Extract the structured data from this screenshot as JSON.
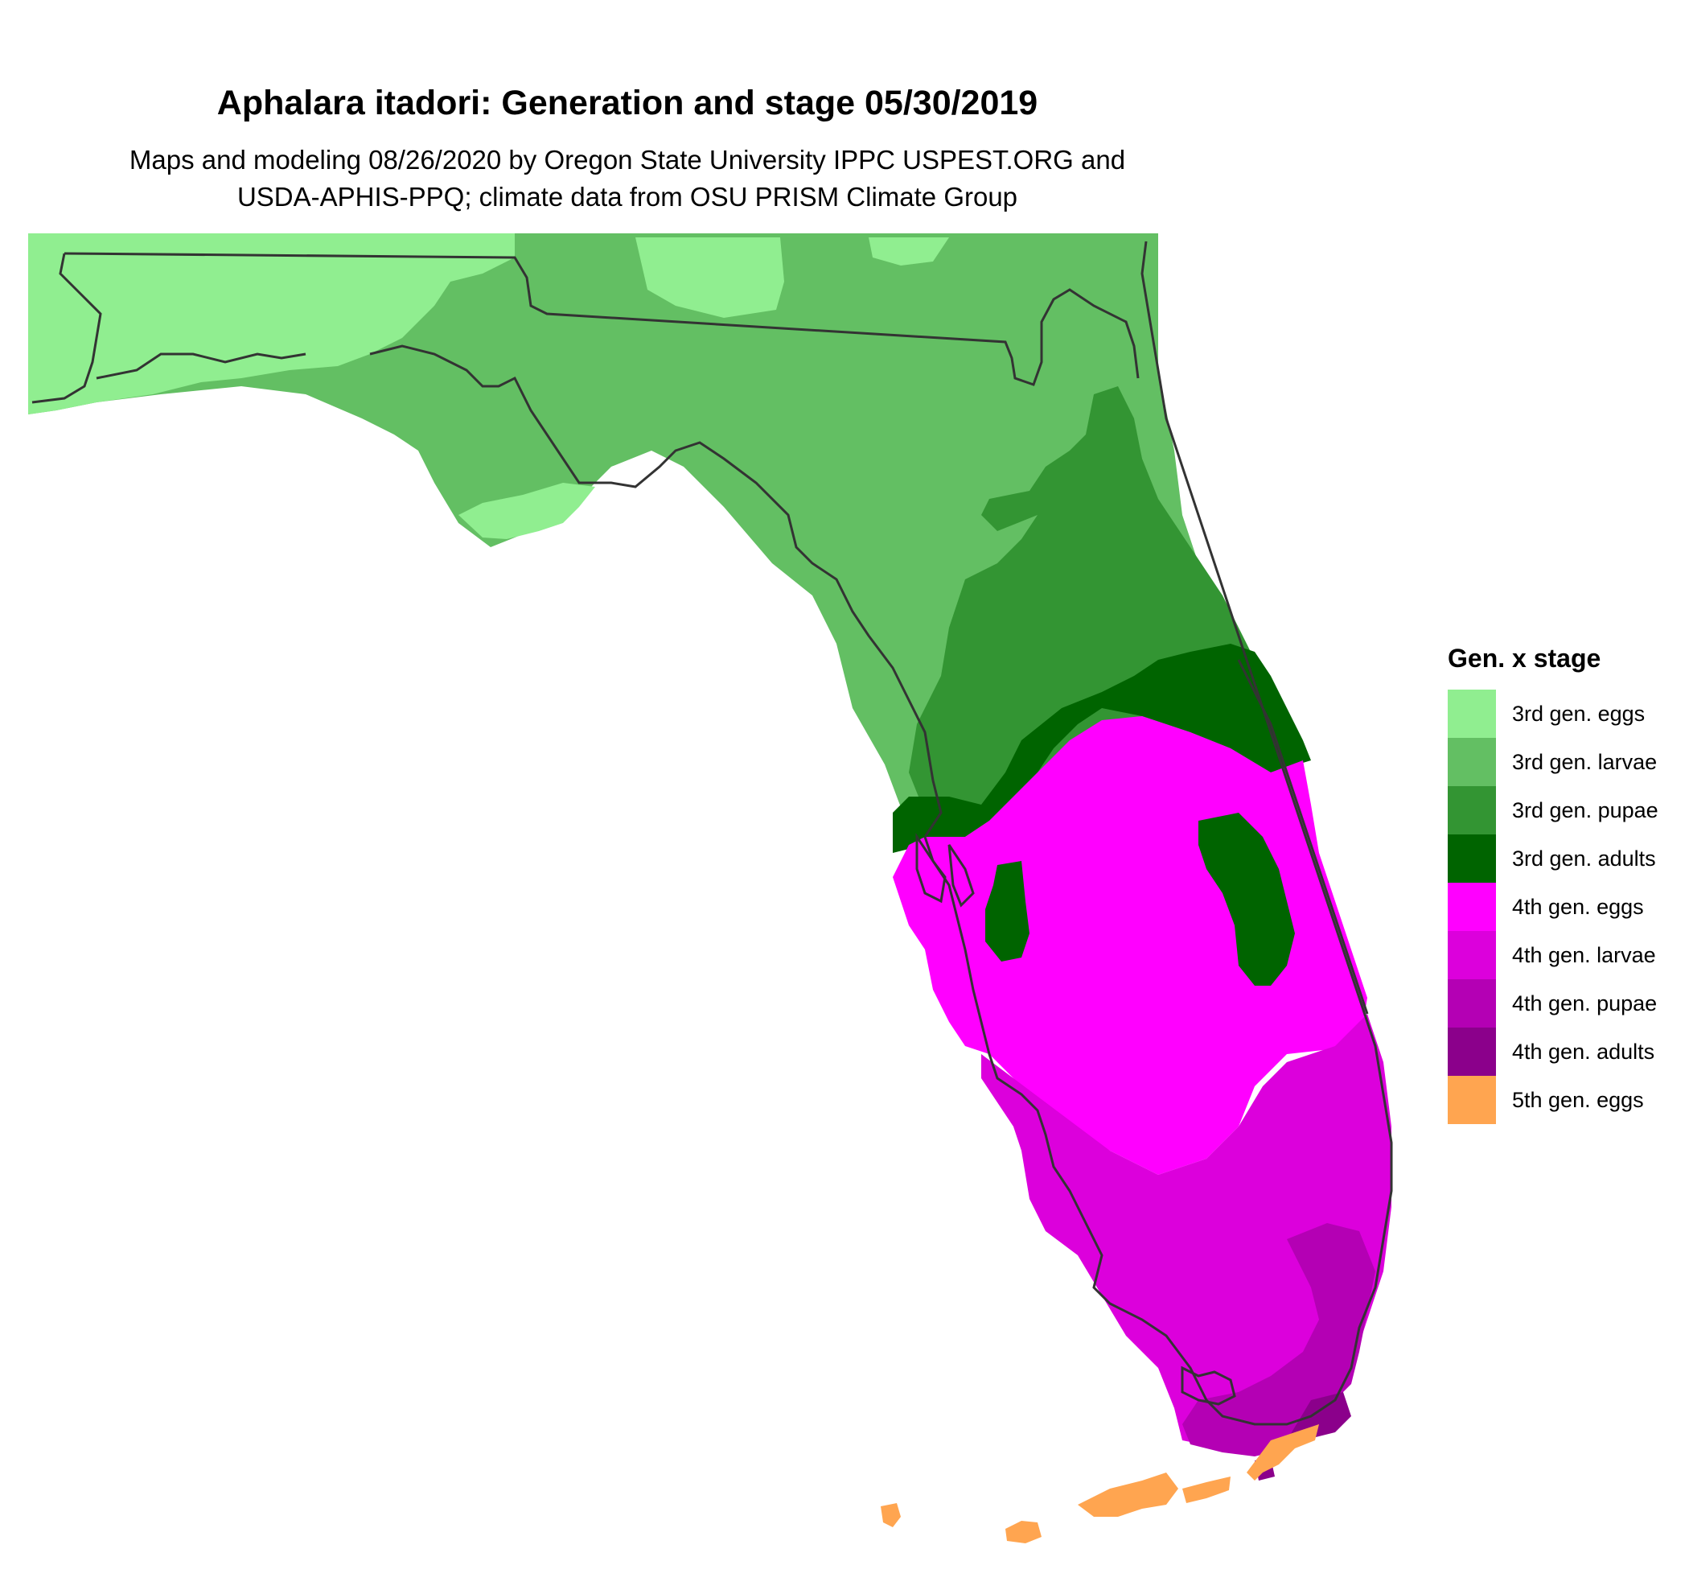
{
  "title": "Aphalara itadori: Generation and stage 05/30/2019",
  "subtitle_line1": "Maps and modeling 08/26/2020 by Oregon State University IPPC USPEST.ORG and",
  "subtitle_line2": "USDA-APHIS-PPQ; climate data from OSU PRISM Climate Group",
  "legend": {
    "title": "Gen. x stage",
    "items": [
      {
        "label": "3rd gen. eggs",
        "color": "#90ee90"
      },
      {
        "label": "3rd gen. larvae",
        "color": "#63bf63"
      },
      {
        "label": "3rd gen. pupae",
        "color": "#339533"
      },
      {
        "label": "3rd gen. adults",
        "color": "#006400"
      },
      {
        "label": "4th gen. eggs",
        "color": "#ff00ff"
      },
      {
        "label": "4th gen. larvae",
        "color": "#dc00dc"
      },
      {
        "label": "4th gen. pupae",
        "color": "#b400b4"
      },
      {
        "label": "4th gen. adults",
        "color": "#8b008b"
      },
      {
        "label": "5th gen. eggs",
        "color": "#ffa550"
      }
    ]
  }
}
